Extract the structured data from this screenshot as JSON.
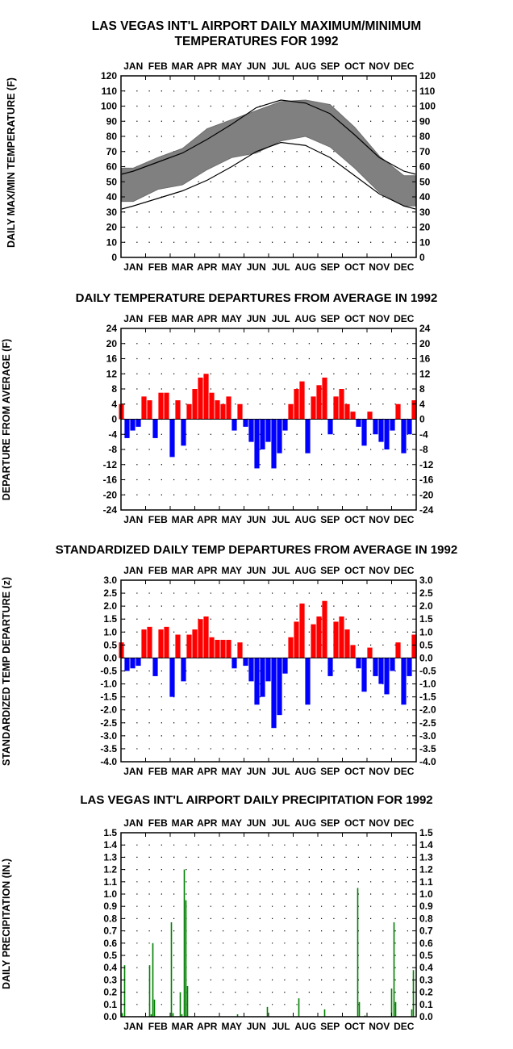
{
  "colors": {
    "envelope": "#808080",
    "normal_line": "#000000",
    "above": "#ff0000",
    "below": "#0000ff",
    "precip": "#008000",
    "frame": "#000000",
    "grid_dot": "#000000"
  },
  "months": [
    "JAN",
    "FEB",
    "MAR",
    "APR",
    "MAY",
    "JUN",
    "JUL",
    "AUG",
    "SEP",
    "OCT",
    "NOV",
    "DEC"
  ],
  "chart_data": [
    {
      "type": "area",
      "title": "LAS VEGAS INT'L AIRPORT DAILY MAXIMUM/MINIMUM TEMPERATURES FOR 1992",
      "title_lines": [
        "LAS VEGAS INT'L AIRPORT DAILY MAXIMUM/MINIMUM",
        "TEMPERATURES FOR 1992"
      ],
      "ylabel": "DAILY MAX/MIN TEMPERATURE (F)",
      "ylim": [
        0,
        120
      ],
      "yticks": [
        0,
        10,
        20,
        30,
        40,
        50,
        60,
        70,
        80,
        90,
        100,
        110,
        120
      ],
      "x_unit": "month",
      "normal_max": {
        "x": [
          1,
          2,
          3,
          4,
          5,
          6,
          7,
          8,
          9,
          10,
          11,
          12
        ],
        "y": [
          57,
          63,
          69,
          78,
          88,
          99,
          104,
          102,
          95,
          81,
          66,
          57
        ]
      },
      "normal_min": {
        "x": [
          1,
          2,
          3,
          4,
          5,
          6,
          7,
          8,
          9,
          10,
          11,
          12
        ],
        "y": [
          34,
          39,
          44,
          51,
          60,
          70,
          76,
          74,
          66,
          54,
          42,
          34
        ]
      },
      "series": [
        {
          "name": "Daily max",
          "x": [
            1,
            2,
            3,
            4,
            5,
            6,
            7,
            8,
            9,
            10,
            11,
            12
          ],
          "values": [
            59,
            66,
            72,
            85,
            91,
            97,
            103,
            104,
            101,
            86,
            67,
            54
          ]
        },
        {
          "name": "Daily min",
          "x": [
            1,
            2,
            3,
            4,
            5,
            6,
            7,
            8,
            9,
            10,
            11,
            12
          ],
          "values": [
            37,
            45,
            48,
            58,
            66,
            69,
            77,
            80,
            73,
            59,
            43,
            34
          ]
        }
      ]
    },
    {
      "type": "bar",
      "title": "DAILY TEMPERATURE DEPARTURES FROM AVERAGE IN 1992",
      "ylabel": "DEPARTURE FROM AVERAGE (F)",
      "ylim": [
        -24,
        24
      ],
      "yticks": [
        -24,
        -20,
        -16,
        -12,
        -8,
        -4,
        0,
        4,
        8,
        12,
        16,
        20,
        24
      ],
      "x_unit": "day",
      "series": [
        {
          "name": "Departure",
          "pts": [
            [
              1,
              4
            ],
            [
              8,
              -5
            ],
            [
              15,
              -3
            ],
            [
              22,
              -2
            ],
            [
              29,
              6
            ],
            [
              36,
              5
            ],
            [
              43,
              -5
            ],
            [
              50,
              7
            ],
            [
              57,
              7
            ],
            [
              64,
              -10
            ],
            [
              71,
              5
            ],
            [
              78,
              -7
            ],
            [
              85,
              4
            ],
            [
              92,
              8
            ],
            [
              99,
              11
            ],
            [
              106,
              12
            ],
            [
              113,
              7
            ],
            [
              120,
              5
            ],
            [
              127,
              4
            ],
            [
              134,
              6
            ],
            [
              141,
              -3
            ],
            [
              148,
              4
            ],
            [
              155,
              -2
            ],
            [
              162,
              -6
            ],
            [
              169,
              -13
            ],
            [
              176,
              -8
            ],
            [
              183,
              -6
            ],
            [
              190,
              -13
            ],
            [
              197,
              -9
            ],
            [
              204,
              -3
            ],
            [
              211,
              4
            ],
            [
              218,
              8
            ],
            [
              225,
              10
            ],
            [
              232,
              -9
            ],
            [
              239,
              6
            ],
            [
              246,
              9
            ],
            [
              253,
              11
            ],
            [
              260,
              -4
            ],
            [
              267,
              6
            ],
            [
              274,
              8
            ],
            [
              281,
              4
            ],
            [
              288,
              2
            ],
            [
              295,
              -2
            ],
            [
              302,
              -7
            ],
            [
              309,
              2
            ],
            [
              316,
              -4
            ],
            [
              323,
              -6
            ],
            [
              330,
              -8
            ],
            [
              337,
              -3
            ],
            [
              344,
              4
            ],
            [
              351,
              -9
            ],
            [
              358,
              -4
            ],
            [
              364,
              5
            ]
          ]
        }
      ]
    },
    {
      "type": "bar",
      "title": "STANDARDIZED DAILY TEMP DEPARTURES FROM AVERAGE IN 1992",
      "ylabel": "STANDARDIZED TEMP DEPARTURE (z)",
      "ylim": [
        -4,
        3
      ],
      "yticks": [
        -4.0,
        -3.5,
        -3.0,
        -2.5,
        -2.0,
        -1.5,
        -1.0,
        -0.5,
        0.0,
        0.5,
        1.0,
        1.5,
        2.0,
        2.5,
        3.0
      ],
      "x_unit": "day",
      "series": [
        {
          "name": "z",
          "pts": [
            [
              1,
              0.6
            ],
            [
              8,
              -0.5
            ],
            [
              15,
              -0.4
            ],
            [
              22,
              -0.3
            ],
            [
              29,
              1.1
            ],
            [
              36,
              1.2
            ],
            [
              43,
              -0.7
            ],
            [
              50,
              1.1
            ],
            [
              57,
              1.2
            ],
            [
              64,
              -1.5
            ],
            [
              71,
              0.9
            ],
            [
              78,
              -0.9
            ],
            [
              85,
              0.9
            ],
            [
              92,
              1.1
            ],
            [
              99,
              1.5
            ],
            [
              106,
              1.6
            ],
            [
              113,
              0.8
            ],
            [
              120,
              0.7
            ],
            [
              127,
              0.7
            ],
            [
              134,
              0.7
            ],
            [
              141,
              -0.4
            ],
            [
              148,
              0.6
            ],
            [
              155,
              -0.3
            ],
            [
              162,
              -0.9
            ],
            [
              169,
              -1.8
            ],
            [
              176,
              -1.5
            ],
            [
              183,
              -0.9
            ],
            [
              190,
              -2.7
            ],
            [
              197,
              -2.2
            ],
            [
              204,
              -0.6
            ],
            [
              211,
              0.8
            ],
            [
              218,
              1.4
            ],
            [
              225,
              2.1
            ],
            [
              232,
              -1.8
            ],
            [
              239,
              1.3
            ],
            [
              246,
              1.6
            ],
            [
              253,
              2.2
            ],
            [
              260,
              -0.7
            ],
            [
              267,
              1.4
            ],
            [
              274,
              1.6
            ],
            [
              281,
              1.1
            ],
            [
              288,
              0.5
            ],
            [
              295,
              -0.4
            ],
            [
              302,
              -1.3
            ],
            [
              309,
              0.4
            ],
            [
              316,
              -0.7
            ],
            [
              323,
              -1.0
            ],
            [
              330,
              -1.4
            ],
            [
              337,
              -0.5
            ],
            [
              344,
              0.6
            ],
            [
              351,
              -1.8
            ],
            [
              358,
              -0.7
            ],
            [
              364,
              0.9
            ]
          ]
        }
      ]
    },
    {
      "type": "bar",
      "title": "LAS VEGAS INT'L AIRPORT DAILY PRECIPITATION FOR 1992",
      "ylabel": "DAILY PRECIPITATION (IN.)",
      "ylim": [
        0,
        1.5
      ],
      "yticks": [
        0.0,
        0.1,
        0.2,
        0.3,
        0.4,
        0.5,
        0.6,
        0.7,
        0.8,
        0.9,
        1.0,
        1.1,
        1.2,
        1.3,
        1.4,
        1.5
      ],
      "x_unit": "day",
      "series": [
        {
          "name": "Precip",
          "pts": [
            [
              2,
              0.03
            ],
            [
              5,
              0.42
            ],
            [
              36,
              0.42
            ],
            [
              38,
              0.02
            ],
            [
              40,
              0.6
            ],
            [
              42,
              0.14
            ],
            [
              63,
              0.77
            ],
            [
              65,
              0.03
            ],
            [
              74,
              0.2
            ],
            [
              76,
              0.02
            ],
            [
              79,
              1.2
            ],
            [
              81,
              0.95
            ],
            [
              83,
              0.25
            ],
            [
              145,
              0.02
            ],
            [
              182,
              0.08
            ],
            [
              221,
              0.15
            ],
            [
              253,
              0.06
            ],
            [
              294,
              1.05
            ],
            [
              296,
              0.12
            ],
            [
              303,
              0.01
            ],
            [
              336,
              0.23
            ],
            [
              339,
              0.77
            ],
            [
              341,
              0.12
            ],
            [
              361,
              0.06
            ],
            [
              363,
              0.38
            ]
          ]
        }
      ]
    }
  ]
}
